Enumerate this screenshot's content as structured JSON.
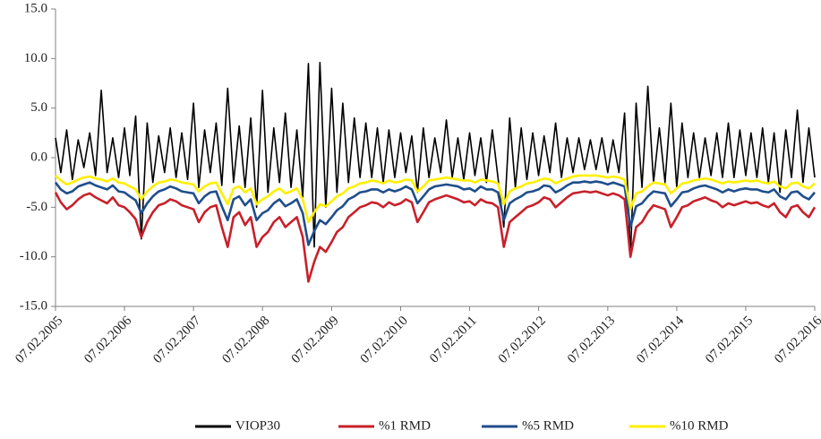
{
  "chart_data": {
    "type": "line",
    "x": [
      "07.02.2005",
      "07.03.2005",
      "07.04.2005",
      "07.05.2005",
      "07.06.2005",
      "07.07.2005",
      "07.08.2005",
      "07.09.2005",
      "07.10.2005",
      "07.11.2005",
      "07.12.2005",
      "07.01.2006",
      "07.02.2006",
      "07.03.2006",
      "07.04.2006",
      "07.05.2006",
      "07.06.2006",
      "07.07.2006",
      "07.08.2006",
      "07.09.2006",
      "07.10.2006",
      "07.11.2006",
      "07.12.2006",
      "07.01.2007",
      "07.02.2007",
      "07.03.2007",
      "07.04.2007",
      "07.05.2007",
      "07.06.2007",
      "07.07.2007",
      "07.08.2007",
      "07.09.2007",
      "07.10.2007",
      "07.11.2007",
      "07.12.2007",
      "07.01.2008",
      "07.02.2008",
      "07.03.2008",
      "07.04.2008",
      "07.05.2008",
      "07.06.2008",
      "07.07.2008",
      "07.08.2008",
      "07.09.2008",
      "07.10.2008",
      "07.11.2008",
      "07.12.2008",
      "07.01.2009",
      "07.02.2009",
      "07.03.2009",
      "07.04.2009",
      "07.05.2009",
      "07.06.2009",
      "07.07.2009",
      "07.08.2009",
      "07.09.2009",
      "07.10.2009",
      "07.11.2009",
      "07.12.2009",
      "07.01.2010",
      "07.02.2010",
      "07.03.2010",
      "07.04.2010",
      "07.05.2010",
      "07.06.2010",
      "07.07.2010",
      "07.08.2010",
      "07.09.2010",
      "07.10.2010",
      "07.11.2010",
      "07.12.2010",
      "07.01.2011",
      "07.02.2011",
      "07.03.2011",
      "07.04.2011",
      "07.05.2011",
      "07.06.2011",
      "07.07.2011",
      "07.08.2011",
      "07.09.2011",
      "07.10.2011",
      "07.11.2011",
      "07.12.2011",
      "07.01.2012",
      "07.02.2012",
      "07.03.2012",
      "07.04.2012",
      "07.05.2012",
      "07.06.2012",
      "07.07.2012",
      "07.08.2012",
      "07.09.2012",
      "07.10.2012",
      "07.11.2012",
      "07.12.2012",
      "07.01.2013",
      "07.02.2013",
      "07.03.2013",
      "07.04.2013",
      "07.05.2013",
      "07.06.2013",
      "07.07.2013",
      "07.08.2013",
      "07.09.2013",
      "07.10.2013",
      "07.11.2013",
      "07.12.2013",
      "07.01.2014",
      "07.02.2014",
      "07.03.2014",
      "07.04.2014",
      "07.05.2014",
      "07.06.2014",
      "07.07.2014",
      "07.08.2014",
      "07.09.2014",
      "07.10.2014",
      "07.11.2014",
      "07.12.2014",
      "07.01.2015",
      "07.02.2015",
      "07.03.2015",
      "07.04.2015",
      "07.05.2015",
      "07.06.2015",
      "07.07.2015",
      "07.08.2015",
      "07.09.2015",
      "07.10.2015",
      "07.11.2015",
      "07.12.2015",
      "07.01.2016",
      "07.02.2016"
    ],
    "series": [
      {
        "name": "VIOP30",
        "color": "#000000",
        "values": [
          2.0,
          -1.5,
          2.8,
          -2.2,
          1.8,
          -1.0,
          2.5,
          -1.8,
          6.8,
          -1.5,
          2.0,
          -2.0,
          3.0,
          -1.8,
          4.2,
          -8.2,
          3.5,
          -2.5,
          2.2,
          -1.5,
          3.0,
          -2.0,
          2.5,
          -2.2,
          5.5,
          -3.0,
          2.8,
          -1.5,
          3.5,
          -2.8,
          7.0,
          -2.5,
          3.2,
          -3.0,
          4.0,
          -5.0,
          6.8,
          -3.5,
          3.0,
          -2.5,
          4.5,
          -3.0,
          2.8,
          -4.0,
          9.5,
          -9.0,
          9.6,
          -5.0,
          7.0,
          -3.5,
          5.5,
          -2.5,
          4.0,
          -2.0,
          3.5,
          -2.0,
          3.0,
          -2.5,
          2.8,
          -2.0,
          2.5,
          -1.5,
          2.2,
          -3.5,
          3.0,
          -2.0,
          2.0,
          -1.5,
          3.8,
          -2.0,
          2.0,
          -2.2,
          2.5,
          -1.8,
          2.0,
          -2.5,
          2.8,
          -2.0,
          -7.0,
          4.0,
          -3.0,
          3.0,
          -2.2,
          2.5,
          -1.8,
          2.2,
          -1.5,
          3.5,
          -2.0,
          2.0,
          -1.5,
          2.0,
          -1.2,
          1.8,
          -1.2,
          2.0,
          -1.5,
          1.8,
          -1.5,
          4.5,
          -10.0,
          5.5,
          -3.0,
          7.2,
          -2.5,
          3.0,
          -2.5,
          5.5,
          -3.0,
          3.5,
          -2.0,
          2.5,
          -2.0,
          2.0,
          -1.8,
          2.5,
          -2.0,
          3.5,
          -2.0,
          2.8,
          -1.8,
          2.5,
          -2.0,
          3.0,
          -2.5,
          2.5,
          -3.5,
          2.8,
          -2.0,
          4.8,
          -2.5,
          3.0,
          -2.0
        ]
      },
      {
        "name": "%1 RMD",
        "color": "#c8202a",
        "values": [
          -3.5,
          -4.5,
          -5.2,
          -4.8,
          -4.2,
          -3.8,
          -3.6,
          -4.0,
          -4.3,
          -4.6,
          -4.0,
          -4.8,
          -5.0,
          -5.5,
          -6.2,
          -8.0,
          -6.5,
          -5.5,
          -4.8,
          -4.6,
          -4.2,
          -4.4,
          -4.8,
          -5.0,
          -5.2,
          -6.5,
          -5.5,
          -5.0,
          -4.8,
          -7.0,
          -9.0,
          -6.0,
          -5.5,
          -6.8,
          -6.0,
          -9.0,
          -8.0,
          -7.5,
          -6.5,
          -6.0,
          -7.0,
          -6.5,
          -6.0,
          -8.0,
          -12.5,
          -10.5,
          -9.0,
          -9.5,
          -8.5,
          -7.5,
          -7.0,
          -6.0,
          -5.5,
          -5.0,
          -4.8,
          -4.5,
          -4.6,
          -5.0,
          -4.5,
          -4.8,
          -4.6,
          -4.2,
          -4.5,
          -6.5,
          -5.5,
          -4.5,
          -4.2,
          -4.0,
          -3.8,
          -4.0,
          -4.2,
          -4.5,
          -4.4,
          -4.8,
          -4.2,
          -4.5,
          -4.6,
          -5.0,
          -9.0,
          -6.5,
          -6.0,
          -5.5,
          -5.0,
          -4.8,
          -4.5,
          -4.0,
          -4.2,
          -5.0,
          -4.5,
          -4.0,
          -3.6,
          -3.5,
          -3.4,
          -3.5,
          -3.4,
          -3.6,
          -3.8,
          -3.6,
          -3.8,
          -4.2,
          -10.0,
          -7.0,
          -6.5,
          -5.5,
          -4.8,
          -5.0,
          -5.2,
          -7.0,
          -6.0,
          -5.0,
          -4.8,
          -4.4,
          -4.2,
          -4.0,
          -4.3,
          -4.5,
          -5.0,
          -4.6,
          -4.8,
          -4.6,
          -4.4,
          -4.6,
          -4.5,
          -4.8,
          -5.0,
          -4.6,
          -5.5,
          -6.0,
          -5.0,
          -4.8,
          -5.5,
          -6.0,
          -5.0
        ]
      },
      {
        "name": "%5 RMD",
        "color": "#1f4e8c",
        "values": [
          -2.5,
          -3.2,
          -3.6,
          -3.4,
          -2.9,
          -2.7,
          -2.5,
          -2.8,
          -3.0,
          -3.2,
          -2.8,
          -3.4,
          -3.5,
          -3.9,
          -4.3,
          -5.6,
          -4.6,
          -3.9,
          -3.4,
          -3.2,
          -2.9,
          -3.1,
          -3.4,
          -3.5,
          -3.6,
          -4.6,
          -3.9,
          -3.5,
          -3.4,
          -4.9,
          -6.3,
          -4.2,
          -3.9,
          -4.8,
          -4.2,
          -6.3,
          -5.6,
          -5.3,
          -4.6,
          -4.2,
          -4.9,
          -4.6,
          -4.2,
          -5.6,
          -8.8,
          -7.4,
          -6.3,
          -6.7,
          -6.0,
          -5.3,
          -4.9,
          -4.2,
          -3.9,
          -3.5,
          -3.4,
          -3.2,
          -3.2,
          -3.5,
          -3.2,
          -3.4,
          -3.2,
          -2.9,
          -3.2,
          -4.6,
          -3.9,
          -3.2,
          -2.9,
          -2.8,
          -2.7,
          -2.8,
          -2.9,
          -3.2,
          -3.1,
          -3.4,
          -2.9,
          -3.2,
          -3.2,
          -3.5,
          -6.3,
          -4.6,
          -4.2,
          -3.9,
          -3.5,
          -3.4,
          -3.2,
          -2.8,
          -2.9,
          -3.5,
          -3.2,
          -2.8,
          -2.5,
          -2.5,
          -2.4,
          -2.5,
          -2.4,
          -2.5,
          -2.7,
          -2.5,
          -2.7,
          -2.9,
          -7.0,
          -4.9,
          -4.6,
          -3.9,
          -3.4,
          -3.5,
          -3.6,
          -4.9,
          -4.2,
          -3.5,
          -3.4,
          -3.1,
          -2.9,
          -2.8,
          -3.0,
          -3.2,
          -3.5,
          -3.2,
          -3.4,
          -3.2,
          -3.1,
          -3.2,
          -3.2,
          -3.4,
          -3.5,
          -3.2,
          -3.9,
          -4.2,
          -3.5,
          -3.4,
          -3.9,
          -4.2,
          -3.5
        ]
      },
      {
        "name": "%10 RMD",
        "color": "#ffef00",
        "values": [
          -1.8,
          -2.3,
          -2.7,
          -2.5,
          -2.2,
          -2.0,
          -1.9,
          -2.1,
          -2.2,
          -2.4,
          -2.1,
          -2.5,
          -2.6,
          -2.9,
          -3.2,
          -4.2,
          -3.4,
          -2.9,
          -2.5,
          -2.4,
          -2.2,
          -2.3,
          -2.5,
          -2.6,
          -2.7,
          -3.4,
          -2.9,
          -2.6,
          -2.5,
          -3.6,
          -4.7,
          -3.1,
          -2.9,
          -3.5,
          -3.1,
          -4.7,
          -4.2,
          -3.9,
          -3.4,
          -3.1,
          -3.6,
          -3.4,
          -3.1,
          -4.2,
          -6.5,
          -5.5,
          -4.7,
          -4.9,
          -4.4,
          -3.9,
          -3.6,
          -3.1,
          -2.9,
          -2.6,
          -2.5,
          -2.3,
          -2.4,
          -2.6,
          -2.3,
          -2.5,
          -2.4,
          -2.2,
          -2.3,
          -3.4,
          -2.9,
          -2.3,
          -2.2,
          -2.1,
          -2.0,
          -2.1,
          -2.2,
          -2.3,
          -2.3,
          -2.5,
          -2.2,
          -2.3,
          -2.4,
          -2.6,
          -4.7,
          -3.4,
          -3.1,
          -2.9,
          -2.6,
          -2.5,
          -2.3,
          -2.1,
          -2.2,
          -2.6,
          -2.3,
          -2.1,
          -1.9,
          -1.8,
          -1.8,
          -1.8,
          -1.8,
          -1.9,
          -2.0,
          -1.9,
          -2.0,
          -2.2,
          -5.2,
          -3.6,
          -3.4,
          -2.9,
          -2.5,
          -2.6,
          -2.7,
          -3.6,
          -3.1,
          -2.6,
          -2.5,
          -2.3,
          -2.2,
          -2.1,
          -2.2,
          -2.4,
          -2.6,
          -2.4,
          -2.5,
          -2.4,
          -2.3,
          -2.4,
          -2.3,
          -2.5,
          -2.6,
          -2.4,
          -2.9,
          -3.1,
          -2.6,
          -2.5,
          -2.9,
          -3.1,
          -2.6
        ]
      }
    ],
    "xlim": [
      "07.02.2005",
      "07.02.2016"
    ],
    "xticks": [
      "07.02.2005",
      "07.02.2006",
      "07.02.2007",
      "07.02.2008",
      "07.02.2009",
      "07.02.2010",
      "07.02.2011",
      "07.02.2012",
      "07.02.2013",
      "07.02.2014",
      "07.02.2015",
      "07.02.2016"
    ],
    "ylim": [
      -15,
      15
    ],
    "yticks": [
      {
        "value": -15,
        "label": "-15.0"
      },
      {
        "value": -10,
        "label": "-10.0"
      },
      {
        "value": -5,
        "label": "-5.0"
      },
      {
        "value": 0,
        "label": "0.0"
      },
      {
        "value": 5,
        "label": "5.0"
      },
      {
        "value": 10,
        "label": "10.0"
      },
      {
        "value": 15,
        "label": "15.0"
      }
    ],
    "grid": false,
    "legend": "bottom"
  }
}
